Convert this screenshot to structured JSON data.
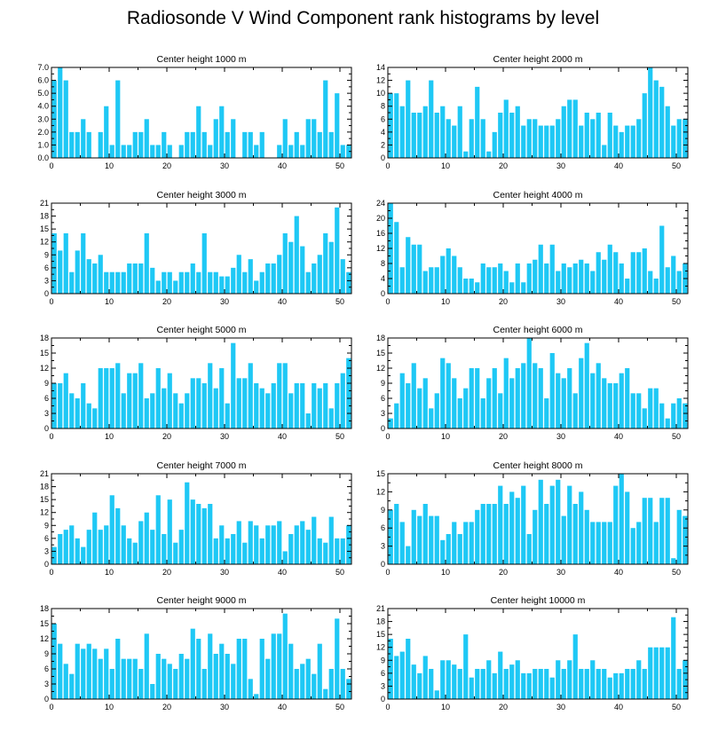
{
  "title": "Radiosonde V Wind Component rank histograms by level",
  "colors": {
    "bar": "#1EC8F5",
    "axis": "#000000"
  },
  "chart_data": [
    {
      "type": "bar",
      "title": "Center height 1000 m",
      "x": [
        0,
        1,
        2,
        3,
        4,
        5,
        6,
        7,
        8,
        9,
        10,
        11,
        12,
        13,
        14,
        15,
        16,
        17,
        18,
        19,
        20,
        21,
        22,
        23,
        24,
        25,
        26,
        27,
        28,
        29,
        30,
        31,
        32,
        33,
        34,
        35,
        36,
        37,
        38,
        39,
        40,
        41,
        42,
        43,
        44,
        45,
        46,
        47,
        48,
        49,
        50,
        51
      ],
      "values": [
        6,
        7,
        6,
        2,
        2,
        3,
        2,
        0,
        2,
        4,
        1,
        6,
        1,
        1,
        2,
        2,
        3,
        1,
        1,
        2,
        1,
        0,
        1,
        2,
        2,
        4,
        2,
        1,
        3,
        4,
        2,
        3,
        0,
        2,
        2,
        1,
        2,
        0,
        0,
        1,
        3,
        1,
        2,
        1,
        3,
        3,
        2,
        6,
        2,
        5,
        1,
        1
      ],
      "xlim": [
        0,
        52
      ],
      "ylim": [
        0,
        7
      ],
      "yticks": [
        "0.0",
        "1.0",
        "2.0",
        "3.0",
        "4.0",
        "5.0",
        "6.0",
        "7.0"
      ],
      "xticks": [
        "0",
        "10",
        "20",
        "30",
        "40",
        "50"
      ]
    },
    {
      "type": "bar",
      "title": "Center height 2000 m",
      "x": [
        0,
        1,
        2,
        3,
        4,
        5,
        6,
        7,
        8,
        9,
        10,
        11,
        12,
        13,
        14,
        15,
        16,
        17,
        18,
        19,
        20,
        21,
        22,
        23,
        24,
        25,
        26,
        27,
        28,
        29,
        30,
        31,
        32,
        33,
        34,
        35,
        36,
        37,
        38,
        39,
        40,
        41,
        42,
        43,
        44,
        45,
        46,
        47,
        48,
        49,
        50,
        51
      ],
      "values": [
        10,
        10,
        8,
        12,
        7,
        7,
        8,
        12,
        7,
        8,
        6,
        5,
        8,
        1,
        6,
        11,
        6,
        1,
        4,
        7,
        9,
        7,
        8,
        5,
        6,
        6,
        5,
        5,
        5,
        6,
        8,
        9,
        9,
        5,
        7,
        6,
        7,
        2,
        7,
        5,
        4,
        5,
        5,
        6,
        10,
        14,
        12,
        11,
        8,
        5,
        6,
        6
      ],
      "xlim": [
        0,
        52
      ],
      "ylim": [
        0,
        14
      ],
      "yticks": [
        "0",
        "2",
        "4",
        "6",
        "8",
        "10",
        "12",
        "14"
      ],
      "xticks": [
        "0",
        "10",
        "20",
        "30",
        "40",
        "50"
      ]
    },
    {
      "type": "bar",
      "title": "Center height 3000 m",
      "x": [
        0,
        1,
        2,
        3,
        4,
        5,
        6,
        7,
        8,
        9,
        10,
        11,
        12,
        13,
        14,
        15,
        16,
        17,
        18,
        19,
        20,
        21,
        22,
        23,
        24,
        25,
        26,
        27,
        28,
        29,
        30,
        31,
        32,
        33,
        34,
        35,
        36,
        37,
        38,
        39,
        40,
        41,
        42,
        43,
        44,
        45,
        46,
        47,
        48,
        49,
        50,
        51
      ],
      "values": [
        14,
        10,
        14,
        5,
        10,
        14,
        8,
        7,
        9,
        5,
        5,
        5,
        5,
        7,
        7,
        7,
        14,
        6,
        3,
        5,
        5,
        3,
        5,
        5,
        7,
        5,
        14,
        5,
        5,
        4,
        4,
        6,
        9,
        5,
        8,
        3,
        5,
        7,
        7,
        9,
        14,
        12,
        18,
        11,
        5,
        7,
        9,
        14,
        12,
        20,
        8,
        5
      ],
      "xlim": [
        0,
        52
      ],
      "ylim": [
        0,
        21
      ],
      "yticks": [
        "0",
        "3",
        "6",
        "9",
        "12",
        "15",
        "18",
        "21"
      ],
      "xticks": [
        "0",
        "10",
        "20",
        "30",
        "40",
        "50"
      ]
    },
    {
      "type": "bar",
      "title": "Center height 4000 m",
      "x": [
        0,
        1,
        2,
        3,
        4,
        5,
        6,
        7,
        8,
        9,
        10,
        11,
        12,
        13,
        14,
        15,
        16,
        17,
        18,
        19,
        20,
        21,
        22,
        23,
        24,
        25,
        26,
        27,
        28,
        29,
        30,
        31,
        32,
        33,
        34,
        35,
        36,
        37,
        38,
        39,
        40,
        41,
        42,
        43,
        44,
        45,
        46,
        47,
        48,
        49,
        50,
        51
      ],
      "values": [
        24,
        19,
        7,
        15,
        13,
        13,
        6,
        7,
        7,
        10,
        12,
        10,
        7,
        4,
        4,
        3,
        8,
        7,
        7,
        8,
        6,
        3,
        8,
        3,
        8,
        9,
        13,
        8,
        13,
        6,
        8,
        7,
        8,
        9,
        8,
        6,
        11,
        9,
        13,
        11,
        8,
        4,
        11,
        11,
        12,
        6,
        4,
        18,
        7,
        10,
        6,
        8
      ],
      "xlim": [
        0,
        52
      ],
      "ylim": [
        0,
        24
      ],
      "yticks": [
        "0",
        "4",
        "8",
        "12",
        "16",
        "20",
        "24"
      ],
      "xticks": [
        "0",
        "10",
        "20",
        "30",
        "40",
        "50"
      ]
    },
    {
      "type": "bar",
      "title": "Center height 5000 m",
      "x": [
        0,
        1,
        2,
        3,
        4,
        5,
        6,
        7,
        8,
        9,
        10,
        11,
        12,
        13,
        14,
        15,
        16,
        17,
        18,
        19,
        20,
        21,
        22,
        23,
        24,
        25,
        26,
        27,
        28,
        29,
        30,
        31,
        32,
        33,
        34,
        35,
        36,
        37,
        38,
        39,
        40,
        41,
        42,
        43,
        44,
        45,
        46,
        47,
        48,
        49,
        50,
        51
      ],
      "values": [
        9,
        9,
        11,
        7,
        6,
        9,
        5,
        4,
        12,
        12,
        12,
        13,
        7,
        11,
        11,
        13,
        6,
        7,
        12,
        8,
        11,
        7,
        5,
        7,
        10,
        10,
        9,
        13,
        8,
        12,
        5,
        17,
        10,
        10,
        13,
        9,
        8,
        7,
        9,
        13,
        13,
        7,
        9,
        9,
        3,
        9,
        8,
        9,
        4,
        9,
        11,
        14
      ],
      "xlim": [
        0,
        52
      ],
      "ylim": [
        0,
        18
      ],
      "yticks": [
        "0",
        "3",
        "6",
        "9",
        "12",
        "15",
        "18"
      ],
      "xticks": [
        "0",
        "10",
        "20",
        "30",
        "40",
        "50"
      ]
    },
    {
      "type": "bar",
      "title": "Center height 6000 m",
      "x": [
        0,
        1,
        2,
        3,
        4,
        5,
        6,
        7,
        8,
        9,
        10,
        11,
        12,
        13,
        14,
        15,
        16,
        17,
        18,
        19,
        20,
        21,
        22,
        23,
        24,
        25,
        26,
        27,
        28,
        29,
        30,
        31,
        32,
        33,
        34,
        35,
        36,
        37,
        38,
        39,
        40,
        41,
        42,
        43,
        44,
        45,
        46,
        47,
        48,
        49,
        50,
        51
      ],
      "values": [
        2,
        5,
        11,
        9,
        13,
        8,
        10,
        4,
        7,
        14,
        13,
        10,
        6,
        8,
        12,
        12,
        6,
        10,
        12,
        7,
        14,
        10,
        12,
        13,
        18,
        13,
        12,
        6,
        15,
        11,
        10,
        12,
        7,
        14,
        17,
        11,
        13,
        10,
        9,
        9,
        11,
        12,
        7,
        7,
        4,
        8,
        8,
        5,
        2,
        5,
        6,
        5
      ],
      "xlim": [
        0,
        52
      ],
      "ylim": [
        0,
        18
      ],
      "yticks": [
        "0",
        "3",
        "6",
        "9",
        "12",
        "15",
        "18"
      ],
      "xticks": [
        "0",
        "10",
        "20",
        "30",
        "40",
        "50"
      ]
    },
    {
      "type": "bar",
      "title": "Center height 7000 m",
      "x": [
        0,
        1,
        2,
        3,
        4,
        5,
        6,
        7,
        8,
        9,
        10,
        11,
        12,
        13,
        14,
        15,
        16,
        17,
        18,
        19,
        20,
        21,
        22,
        23,
        24,
        25,
        26,
        27,
        28,
        29,
        30,
        31,
        32,
        33,
        34,
        35,
        36,
        37,
        38,
        39,
        40,
        41,
        42,
        43,
        44,
        45,
        46,
        47,
        48,
        49,
        50,
        51
      ],
      "values": [
        4,
        7,
        8,
        9,
        6,
        4,
        8,
        12,
        8,
        9,
        16,
        13,
        9,
        6,
        5,
        10,
        12,
        8,
        16,
        7,
        15,
        5,
        8,
        19,
        15,
        14,
        13,
        14,
        6,
        9,
        6,
        7,
        10,
        5,
        10,
        9,
        6,
        9,
        9,
        10,
        3,
        7,
        9,
        10,
        8,
        11,
        6,
        5,
        11,
        6,
        6,
        9
      ],
      "xlim": [
        0,
        52
      ],
      "ylim": [
        0,
        21
      ],
      "yticks": [
        "0",
        "3",
        "6",
        "9",
        "12",
        "15",
        "18",
        "21"
      ],
      "xticks": [
        "0",
        "10",
        "20",
        "30",
        "40",
        "50"
      ]
    },
    {
      "type": "bar",
      "title": "Center height 8000 m",
      "x": [
        0,
        1,
        2,
        3,
        4,
        5,
        6,
        7,
        8,
        9,
        10,
        11,
        12,
        13,
        14,
        15,
        16,
        17,
        18,
        19,
        20,
        21,
        22,
        23,
        24,
        25,
        26,
        27,
        28,
        29,
        30,
        31,
        32,
        33,
        34,
        35,
        36,
        37,
        38,
        39,
        40,
        41,
        42,
        43,
        44,
        45,
        46,
        47,
        48,
        49,
        50,
        51
      ],
      "values": [
        9,
        10,
        7,
        3,
        9,
        8,
        10,
        8,
        8,
        4,
        5,
        7,
        5,
        7,
        7,
        9,
        10,
        10,
        10,
        13,
        10,
        12,
        11,
        13,
        5,
        9,
        14,
        10,
        13,
        14,
        8,
        13,
        10,
        12,
        9,
        7,
        7,
        7,
        7,
        13,
        15,
        12,
        6,
        7,
        11,
        11,
        7,
        11,
        11,
        1,
        9,
        8
      ],
      "xlim": [
        0,
        52
      ],
      "ylim": [
        0,
        15
      ],
      "yticks": [
        "0",
        "3",
        "6",
        "9",
        "12",
        "15"
      ],
      "xticks": [
        "0",
        "10",
        "20",
        "30",
        "40",
        "50"
      ]
    },
    {
      "type": "bar",
      "title": "Center height 9000 m",
      "x": [
        0,
        1,
        2,
        3,
        4,
        5,
        6,
        7,
        8,
        9,
        10,
        11,
        12,
        13,
        14,
        15,
        16,
        17,
        18,
        19,
        20,
        21,
        22,
        23,
        24,
        25,
        26,
        27,
        28,
        29,
        30,
        31,
        32,
        33,
        34,
        35,
        36,
        37,
        38,
        39,
        40,
        41,
        42,
        43,
        44,
        45,
        46,
        47,
        48,
        49,
        50,
        51
      ],
      "values": [
        15,
        11,
        7,
        5,
        11,
        10,
        11,
        10,
        8,
        10,
        6,
        12,
        8,
        8,
        8,
        6,
        13,
        3,
        9,
        8,
        7,
        6,
        9,
        8,
        14,
        12,
        6,
        13,
        9,
        11,
        9,
        7,
        12,
        12,
        4,
        1,
        12,
        8,
        13,
        13,
        17,
        11,
        6,
        7,
        8,
        5,
        11,
        2,
        6,
        16,
        6,
        4
      ],
      "xlim": [
        0,
        52
      ],
      "ylim": [
        0,
        18
      ],
      "yticks": [
        "0",
        "3",
        "6",
        "9",
        "12",
        "15",
        "18"
      ],
      "xticks": [
        "0",
        "10",
        "20",
        "30",
        "40",
        "50"
      ]
    },
    {
      "type": "bar",
      "title": "Center height 10000 m",
      "x": [
        0,
        1,
        2,
        3,
        4,
        5,
        6,
        7,
        8,
        9,
        10,
        11,
        12,
        13,
        14,
        15,
        16,
        17,
        18,
        19,
        20,
        21,
        22,
        23,
        24,
        25,
        26,
        27,
        28,
        29,
        30,
        31,
        32,
        33,
        34,
        35,
        36,
        37,
        38,
        39,
        40,
        41,
        42,
        43,
        44,
        45,
        46,
        47,
        48,
        49,
        50,
        51
      ],
      "values": [
        14,
        10,
        11,
        14,
        8,
        6,
        10,
        7,
        2,
        9,
        9,
        8,
        7,
        15,
        5,
        7,
        7,
        9,
        6,
        11,
        7,
        8,
        9,
        6,
        6,
        7,
        7,
        7,
        5,
        9,
        7,
        9,
        15,
        7,
        7,
        9,
        7,
        7,
        5,
        6,
        6,
        7,
        7,
        9,
        7,
        12,
        12,
        12,
        12,
        19,
        7,
        9
      ],
      "xlim": [
        0,
        52
      ],
      "ylim": [
        0,
        21
      ],
      "yticks": [
        "0",
        "3",
        "6",
        "9",
        "12",
        "15",
        "18",
        "21"
      ],
      "xticks": [
        "0",
        "10",
        "20",
        "30",
        "40",
        "50"
      ]
    }
  ]
}
